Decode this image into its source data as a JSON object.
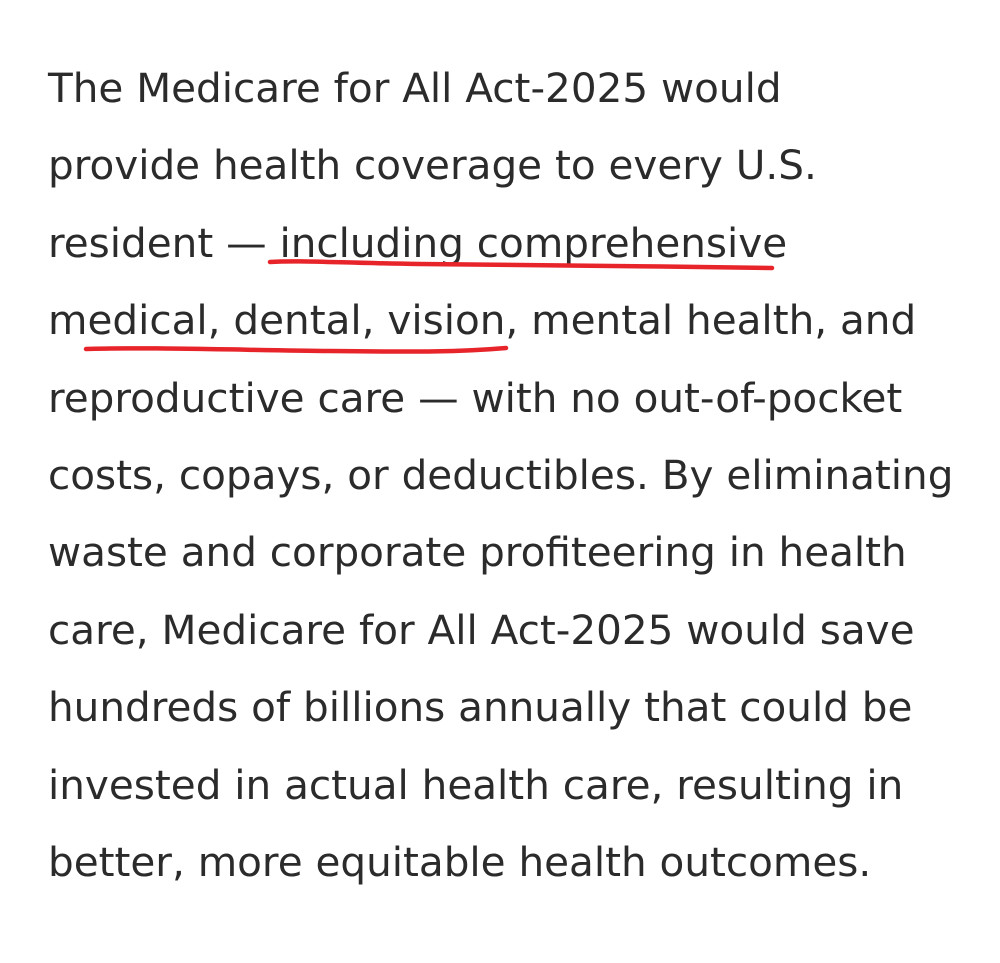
{
  "article": {
    "lines": [
      "The Medicare for All Act-2025 would",
      "provide health coverage to every U.S.",
      "resident — including comprehensive",
      "medical, dental, vision, mental health, and",
      "reproductive care — with no out-of-pocket",
      "costs, copays, or deductibles. By eliminating",
      "waste and corporate profiteering in health",
      "care, Medicare for All Act-2025 would save",
      "hundreds of billions annually that could be",
      "invested in actual health care, resulting in",
      "better, more equitable health outcomes."
    ]
  },
  "annotations": {
    "underline_color": "#e8242b",
    "underlined_text": "including comprehensive medical, dental, vision,"
  }
}
